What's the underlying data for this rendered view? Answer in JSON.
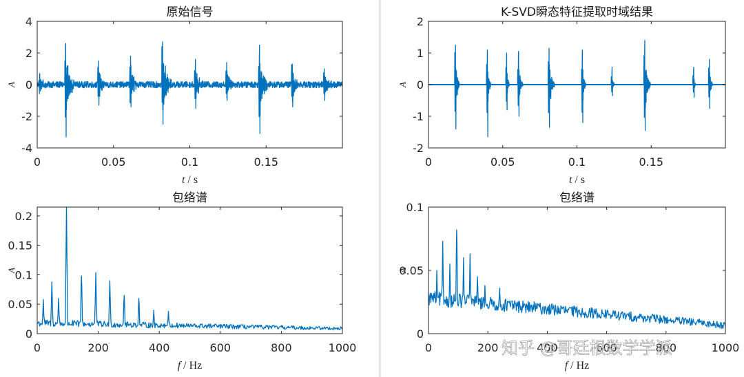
{
  "chart_data": [
    {
      "id": "raw-time",
      "type": "line",
      "title": "原始信号",
      "xlabel_var": "t",
      "xlabel_unit": " / s",
      "ylabel": "A",
      "xlim": [
        0,
        0.2
      ],
      "ylim": [
        -4,
        4
      ],
      "xticks": [
        0,
        0.05,
        0.1,
        0.15
      ],
      "xtick_labels": [
        "0",
        "0.05",
        "0.1",
        "0.15"
      ],
      "yticks": [
        -4,
        -2,
        0,
        2,
        4
      ],
      "ytick_labels": [
        "-4",
        "-2",
        "0",
        "2",
        "4"
      ],
      "signal": {
        "kind": "impulse",
        "noise": 0.2,
        "bursts": [
          {
            "t": 0.0015,
            "amp": 0.7,
            "dur": 0.004
          },
          {
            "t": 0.0185,
            "amp": 2.6,
            "neg": -3.3,
            "dur": 0.006
          },
          {
            "t": 0.04,
            "amp": 1.5,
            "neg": -1.3,
            "dur": 0.005
          },
          {
            "t": 0.061,
            "amp": 1.8,
            "neg": -1.4,
            "dur": 0.005
          },
          {
            "t": 0.082,
            "amp": 2.7,
            "neg": -2.5,
            "dur": 0.006
          },
          {
            "t": 0.1035,
            "amp": 1.6,
            "neg": -1.5,
            "dur": 0.005
          },
          {
            "t": 0.124,
            "amp": 1.4,
            "neg": -1.0,
            "dur": 0.005
          },
          {
            "t": 0.1455,
            "amp": 2.5,
            "neg": -3.1,
            "dur": 0.006
          },
          {
            "t": 0.167,
            "amp": 1.3,
            "neg": -1.4,
            "dur": 0.005
          },
          {
            "t": 0.188,
            "amp": 1.0,
            "neg": -1.0,
            "dur": 0.005
          }
        ]
      }
    },
    {
      "id": "ksvd-time",
      "type": "line",
      "title": "K-SVD瞬态特征提取时域结果",
      "xlabel_var": "t",
      "xlabel_unit": " / s",
      "ylabel": "A",
      "xlim": [
        0,
        0.2
      ],
      "ylim": [
        -2,
        2
      ],
      "xticks": [
        0,
        0.05,
        0.1,
        0.15
      ],
      "xtick_labels": [
        "0",
        "0.05",
        "0.1",
        "0.15"
      ],
      "yticks": [
        -2,
        -1,
        0,
        1,
        2
      ],
      "ytick_labels": [
        "-2",
        "-1",
        "0",
        "1",
        "2"
      ],
      "signal": {
        "kind": "sparse",
        "noise": 0,
        "bursts": [
          {
            "t": 0.018,
            "amp": 1.25,
            "neg": -1.4,
            "dur": 0.003
          },
          {
            "t": 0.0395,
            "amp": 1.1,
            "neg": -1.65,
            "dur": 0.0025
          },
          {
            "t": 0.0525,
            "amp": 1.0,
            "neg": -0.8,
            "dur": 0.002
          },
          {
            "t": 0.0605,
            "amp": 1.05,
            "neg": -1.0,
            "dur": 0.003
          },
          {
            "t": 0.081,
            "amp": 1.15,
            "neg": -1.35,
            "dur": 0.004
          },
          {
            "t": 0.1035,
            "amp": 1.1,
            "neg": -1.2,
            "dur": 0.0025
          },
          {
            "t": 0.1235,
            "amp": 0.55,
            "neg": -0.35,
            "dur": 0.002
          },
          {
            "t": 0.1455,
            "amp": 1.4,
            "neg": -1.45,
            "dur": 0.004
          },
          {
            "t": 0.1785,
            "amp": 0.55,
            "neg": -0.4,
            "dur": 0.0015
          },
          {
            "t": 0.189,
            "amp": 0.8,
            "neg": -0.75,
            "dur": 0.0025
          }
        ]
      }
    },
    {
      "id": "raw-envelope",
      "type": "line",
      "title": "包络谱",
      "xlabel_var": "f",
      "xlabel_unit": " / Hz",
      "ylabel": "A",
      "xlim": [
        0,
        1000
      ],
      "ylim": [
        0,
        0.215
      ],
      "xticks": [
        0,
        200,
        400,
        600,
        800,
        1000
      ],
      "xtick_labels": [
        "0",
        "200",
        "400",
        "600",
        "800",
        "1000"
      ],
      "yticks": [
        0,
        0.05,
        0.1,
        0.15,
        0.2
      ],
      "ytick_labels": [
        "0",
        "0.05",
        "0.1",
        "0.15",
        "0.2"
      ],
      "spectrum": {
        "floor_start": 0.012,
        "floor_end": 0.006,
        "noise": 0.012,
        "peaks": [
          {
            "f": 20,
            "a": 0.058
          },
          {
            "f": 48,
            "a": 0.088
          },
          {
            "f": 70,
            "a": 0.06
          },
          {
            "f": 96,
            "a": 0.215
          },
          {
            "f": 145,
            "a": 0.098
          },
          {
            "f": 192,
            "a": 0.104
          },
          {
            "f": 238,
            "a": 0.09
          },
          {
            "f": 285,
            "a": 0.065
          },
          {
            "f": 333,
            "a": 0.06
          },
          {
            "f": 382,
            "a": 0.04
          },
          {
            "f": 430,
            "a": 0.038
          }
        ]
      }
    },
    {
      "id": "ksvd-envelope",
      "type": "line",
      "title": "包络谱",
      "xlabel_var": "f",
      "xlabel_unit": " / Hz",
      "ylabel": "A",
      "xlim": [
        0,
        1000
      ],
      "ylim": [
        0,
        0.1
      ],
      "xticks": [
        0,
        200,
        400,
        600,
        800,
        1000
      ],
      "xtick_labels": [
        "0",
        "200",
        "400",
        "600",
        "800",
        "1000"
      ],
      "yticks": [
        0,
        0.05,
        0.1
      ],
      "ytick_labels": [
        "0",
        "0.05",
        "0.1"
      ],
      "spectrum": {
        "floor_start": 0.022,
        "floor_end": 0.004,
        "noise": 0.012,
        "peaks": [
          {
            "f": 15,
            "a": 0.03
          },
          {
            "f": 28,
            "a": 0.05
          },
          {
            "f": 48,
            "a": 0.073
          },
          {
            "f": 72,
            "a": 0.055
          },
          {
            "f": 95,
            "a": 0.082
          },
          {
            "f": 118,
            "a": 0.06
          },
          {
            "f": 140,
            "a": 0.063
          },
          {
            "f": 165,
            "a": 0.045
          },
          {
            "f": 190,
            "a": 0.038
          },
          {
            "f": 240,
            "a": 0.036
          },
          {
            "f": 290,
            "a": 0.026
          },
          {
            "f": 330,
            "a": 0.022
          }
        ]
      }
    }
  ],
  "watermark": "知乎 @哥廷根数学学派"
}
